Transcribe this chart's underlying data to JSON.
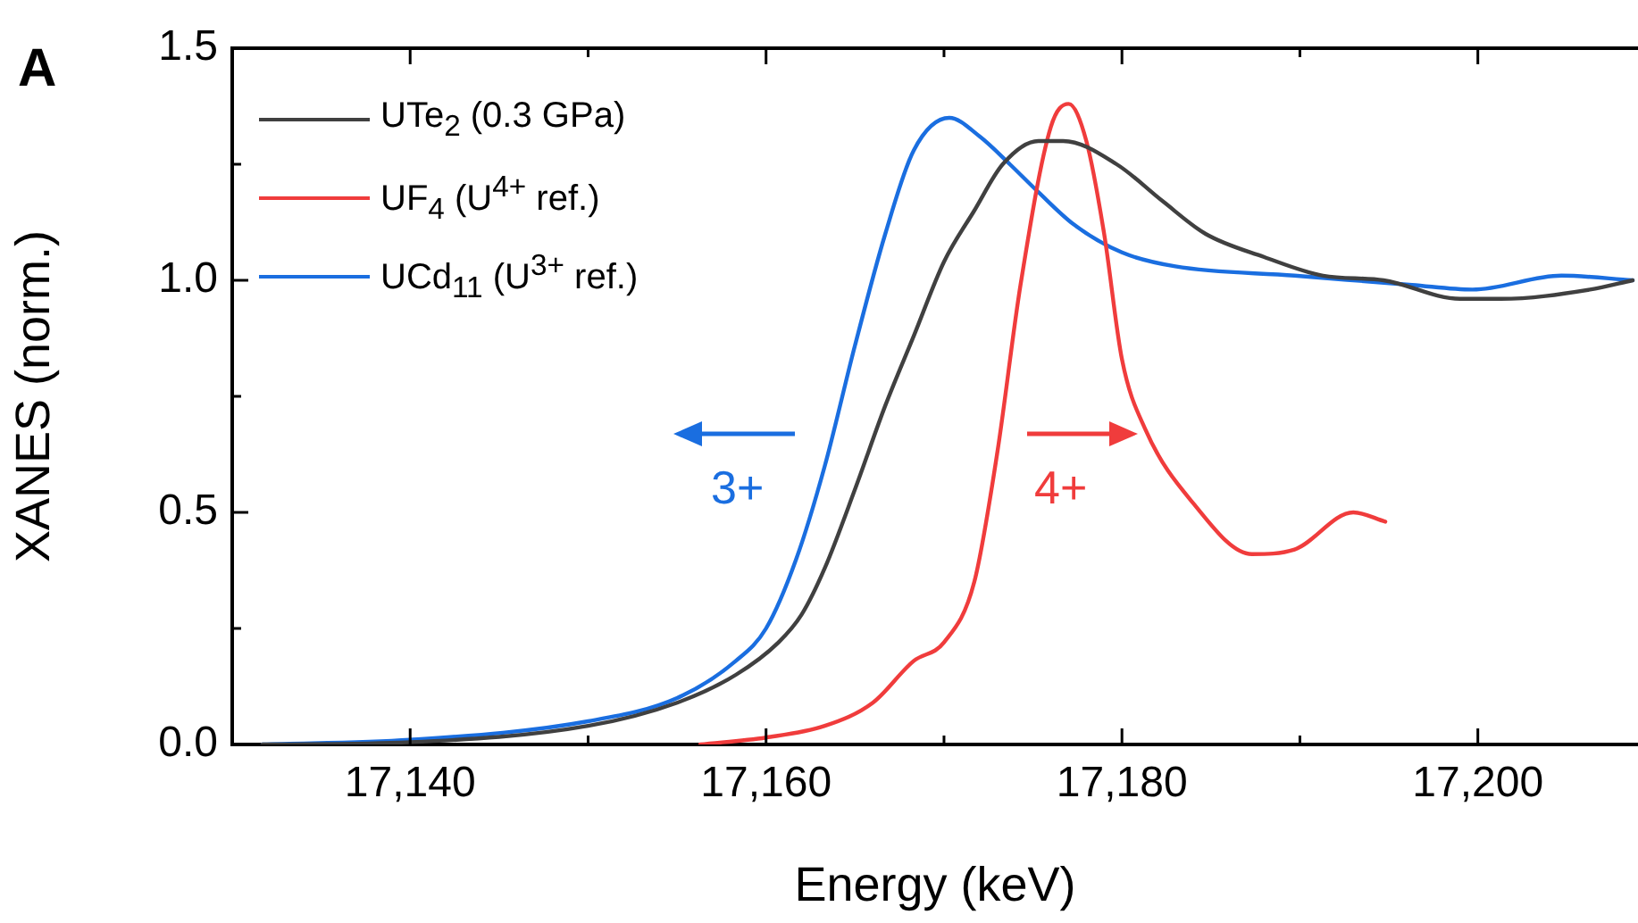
{
  "chart_data": {
    "type": "line",
    "xlabel": "Energy (keV)",
    "ylabel": "XANES (norm.)",
    "xlim": [
      17130,
      17209
    ],
    "ylim": [
      0,
      1.5
    ],
    "xticks": [
      {
        "value": 17140,
        "label": "17,140"
      },
      {
        "value": 17150,
        "label": null
      },
      {
        "value": 17160,
        "label": "17,160"
      },
      {
        "value": 17170,
        "label": null
      },
      {
        "value": 17180,
        "label": "17,180"
      },
      {
        "value": 17190,
        "label": null
      },
      {
        "value": 17200,
        "label": "17,200"
      }
    ],
    "yticks": [
      {
        "value": 0,
        "label": "0.0"
      },
      {
        "value": 0.25,
        "label": null
      },
      {
        "value": 0.5,
        "label": "0.5"
      },
      {
        "value": 0.75,
        "label": null
      },
      {
        "value": 1,
        "label": "1.0"
      },
      {
        "value": 1.25,
        "label": null
      },
      {
        "value": 1.5,
        "label": "1.5"
      }
    ],
    "grid": false,
    "legend": "top left",
    "marker": "none",
    "line_style": "solid",
    "annotations": [
      "A",
      "3+",
      "4+"
    ],
    "series": [
      {
        "name": "UTe$_{2}$ (0.3 GPa)",
        "color": "#404040",
        "x": [
          17131.7,
          17140,
          17150,
          17155,
          17158.3,
          17160.7,
          17162,
          17163.3,
          17165,
          17166.7,
          17168.3,
          17170,
          17171.7,
          17173.3,
          17175.3,
          17176.7,
          17179.7,
          17182.3,
          17184.7,
          17188,
          17191.3,
          17194.7,
          17199,
          17201.3,
          17206.3,
          17208.7
        ],
        "values": [
          0,
          0.005,
          0.04,
          0.09,
          0.15,
          0.22,
          0.28,
          0.38,
          0.55,
          0.73,
          0.88,
          1.04,
          1.15,
          1.25,
          1.3,
          1.3,
          1.25,
          1.17,
          1.1,
          1.05,
          1.01,
          1.0,
          0.96,
          0.96,
          0.98,
          1.0
        ]
      },
      {
        "name": "UF$_{4}$ (U$^{4+}$ ref.)",
        "color": "#f03c3c",
        "x": [
          17156.3,
          17160,
          17163.3,
          17166,
          17168.3,
          17170,
          17171.7,
          17173,
          17174.3,
          17176,
          17177,
          17178,
          17179,
          17180,
          17181.3,
          17184,
          17187.3,
          17189.7,
          17193,
          17194.8
        ],
        "values": [
          0,
          0.015,
          0.04,
          0.09,
          0.18,
          0.22,
          0.35,
          0.63,
          0.99,
          1.33,
          1.38,
          1.3,
          1.1,
          0.83,
          0.68,
          0.52,
          0.41,
          0.42,
          0.5,
          0.48
        ]
      },
      {
        "name": "UCd$_{11}$ (U$^{3+}$ ref.)",
        "color": "#1a6ee0",
        "x": [
          17131.7,
          17140,
          17150,
          17155,
          17158.3,
          17160,
          17161.7,
          17163.3,
          17165,
          17166.7,
          17168.3,
          17170.3,
          17172,
          17173.7,
          17175.3,
          17177.3,
          17180,
          17183,
          17189.7,
          17196.3,
          17199.7,
          17204.7,
          17208.7
        ],
        "values": [
          0,
          0.01,
          0.05,
          0.1,
          0.18,
          0.25,
          0.4,
          0.6,
          0.86,
          1.1,
          1.28,
          1.35,
          1.31,
          1.25,
          1.19,
          1.12,
          1.06,
          1.03,
          1.01,
          0.99,
          0.98,
          1.01,
          1.0
        ]
      }
    ]
  }
}
